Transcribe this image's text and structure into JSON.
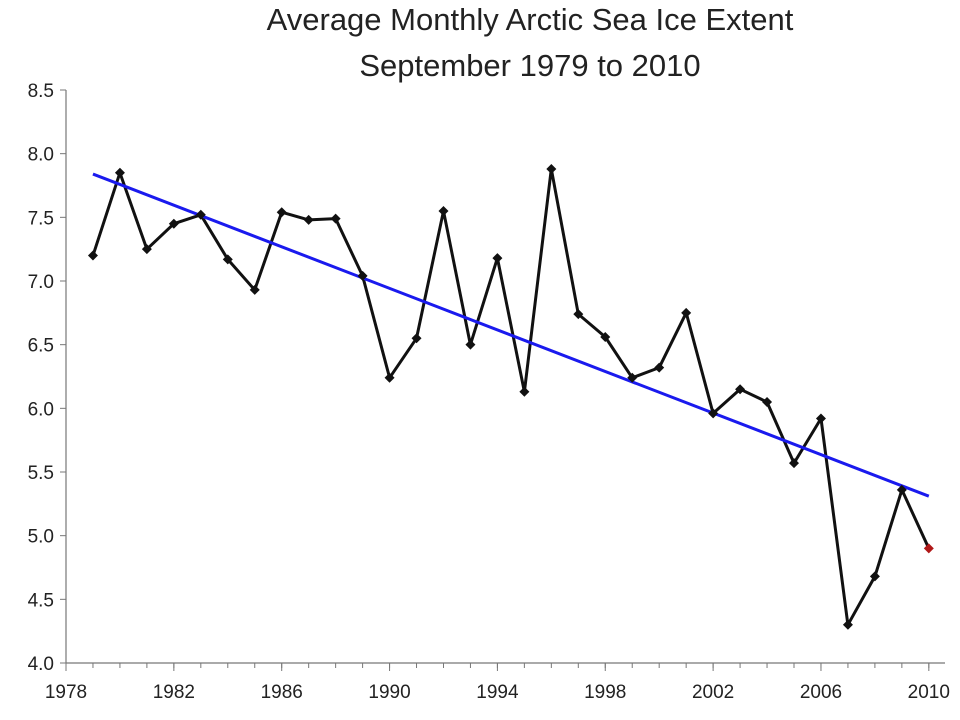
{
  "chart_data": {
    "type": "line",
    "title_lines": [
      "Average Monthly Arctic Sea Ice Extent",
      "September 1979 to 2010"
    ],
    "xlabel": "",
    "ylabel": "",
    "xlim": [
      1978,
      2010.6
    ],
    "ylim": [
      4.0,
      8.5
    ],
    "x_ticks": [
      1978,
      1982,
      1986,
      1990,
      1994,
      1998,
      2002,
      2006,
      2010
    ],
    "y_ticks": [
      4.0,
      4.5,
      5.0,
      5.5,
      6.0,
      6.5,
      7.0,
      7.5,
      8.0,
      8.5
    ],
    "y_tick_labels": [
      "4.0",
      "4.5",
      "5.0",
      "5.5",
      "6.0",
      "6.5",
      "7.0",
      "7.5",
      "8.0",
      "8.5"
    ],
    "grid": false,
    "legend": "none",
    "series": [
      {
        "name": "September extent",
        "color": "#111111",
        "highlight_last_color": "#b01818",
        "x": [
          1979,
          1980,
          1981,
          1982,
          1983,
          1984,
          1985,
          1986,
          1987,
          1988,
          1989,
          1990,
          1991,
          1992,
          1993,
          1994,
          1995,
          1996,
          1997,
          1998,
          1999,
          2000,
          2001,
          2002,
          2003,
          2004,
          2005,
          2006,
          2007,
          2008,
          2009,
          2010
        ],
        "values": [
          7.2,
          7.85,
          7.25,
          7.45,
          7.52,
          7.17,
          6.93,
          7.54,
          7.48,
          7.49,
          7.04,
          6.24,
          6.55,
          7.55,
          6.5,
          7.18,
          6.13,
          7.88,
          6.74,
          6.56,
          6.24,
          6.32,
          6.75,
          5.96,
          6.15,
          6.05,
          5.57,
          5.92,
          4.3,
          4.68,
          5.36,
          4.9
        ]
      },
      {
        "name": "Linear trend",
        "color": "#1a1aee",
        "x": [
          1979,
          2010
        ],
        "values": [
          7.84,
          5.31
        ]
      }
    ]
  }
}
